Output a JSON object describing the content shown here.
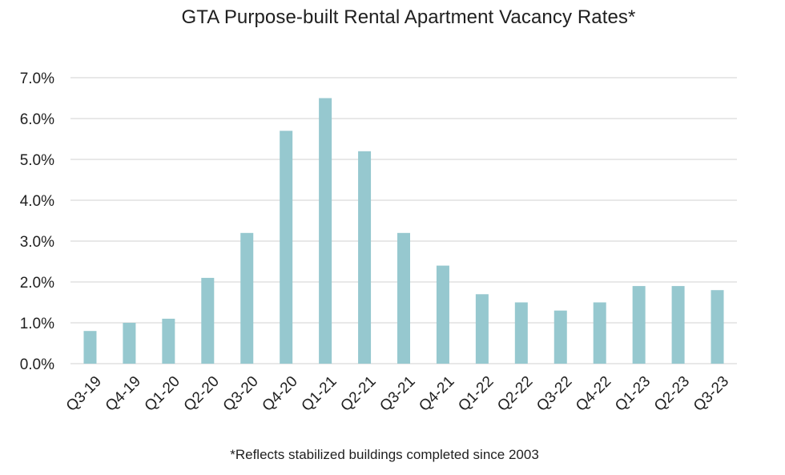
{
  "chart_data": {
    "type": "bar",
    "title": "GTA Purpose-built Rental Apartment Vacancy Rates*",
    "footnote": "*Reflects stabilized buildings completed since 2003",
    "categories": [
      "Q3-19",
      "Q4-19",
      "Q1-20",
      "Q2-20",
      "Q3-20",
      "Q4-20",
      "Q1-21",
      "Q2-21",
      "Q3-21",
      "Q4-21",
      "Q1-22",
      "Q2-22",
      "Q3-22",
      "Q4-22",
      "Q1-23",
      "Q2-23",
      "Q3-23"
    ],
    "values": [
      0.8,
      1.0,
      1.1,
      2.1,
      3.2,
      5.7,
      6.5,
      5.2,
      3.2,
      2.4,
      1.7,
      1.5,
      1.3,
      1.5,
      1.9,
      1.9,
      1.8
    ],
    "ylim": [
      0,
      7
    ],
    "yticks": [
      "0.0%",
      "1.0%",
      "2.0%",
      "3.0%",
      "4.0%",
      "5.0%",
      "6.0%",
      "7.0%"
    ],
    "grid": true,
    "legend": "none",
    "bar_color": "#96c8cf",
    "grid_color": "#d9d9d9"
  }
}
